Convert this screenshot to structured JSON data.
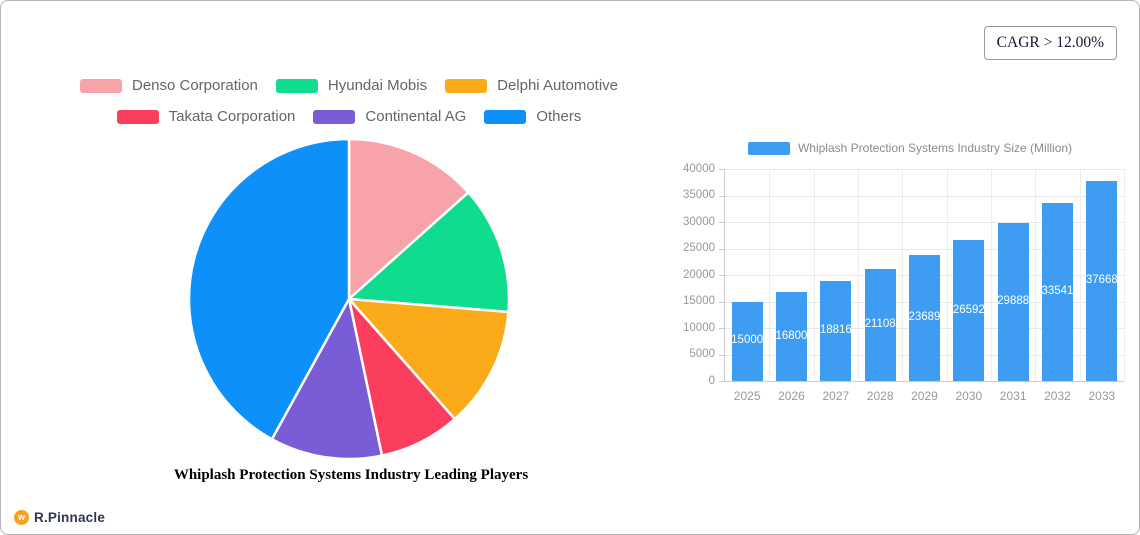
{
  "cagr_badge": {
    "label": "CAGR > 12.00%"
  },
  "logo": {
    "text": "R.Pinnacle",
    "icon_color": "#F6A21E"
  },
  "chart_data": [
    {
      "type": "pie",
      "title": "Whiplash Protection Systems Industry Leading Players",
      "legend_position": "top",
      "start_angle_deg": -90,
      "direction": "clockwise",
      "segments": [
        {
          "label": "Denso Corporation",
          "color": "#F7A3A9",
          "percent": 13.4
        },
        {
          "label": "Hyundai Mobis",
          "color": "#10DC8E",
          "percent": 12.9
        },
        {
          "label": "Delphi Automotive",
          "color": "#FBAB1A",
          "percent": 12.2
        },
        {
          "label": "Takata Corporation",
          "color": "#FB3E5E",
          "percent": 8.2
        },
        {
          "label": "Continental AG",
          "color": "#7A5CD6",
          "percent": 11.3
        },
        {
          "label": "Others",
          "color": "#0E90FB",
          "percent": 42.0
        }
      ]
    },
    {
      "type": "bar",
      "legend": "Whiplash Protection Systems Industry Size (Million)",
      "categories": [
        "2025",
        "2026",
        "2027",
        "2028",
        "2029",
        "2030",
        "2031",
        "2032",
        "2033"
      ],
      "values": [
        15000,
        16800,
        18816,
        21108,
        23689,
        26592,
        29888,
        33541,
        37668
      ],
      "bar_color": "#3E9DF3",
      "ylim": [
        0,
        40000
      ],
      "y_ticks": [
        0,
        5000,
        10000,
        15000,
        20000,
        25000,
        30000,
        35000,
        40000
      ],
      "grid": true,
      "value_labels": "inside-center-white",
      "legend_position": "top"
    }
  ]
}
